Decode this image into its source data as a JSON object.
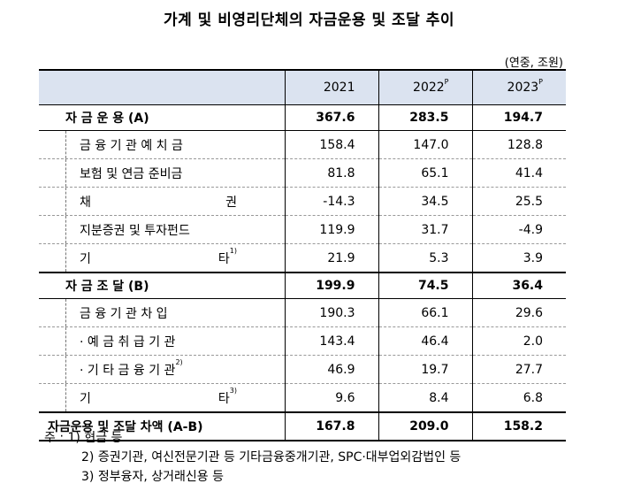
{
  "title": "가계 및 비영리단체의 자금운용 및 조달 추이",
  "unit": "(연중, 조원)",
  "columns": [
    {
      "year": "2021",
      "sup": ""
    },
    {
      "year": "2022",
      "sup": "P"
    },
    {
      "year": "2023",
      "sup": "P"
    }
  ],
  "rows": {
    "uses": {
      "label": "자 금 운 용 (A)",
      "values": [
        "367.6",
        "283.5",
        "194.7"
      ]
    },
    "deposits": {
      "label": "금 융 기 관 예 치 금",
      "values": [
        "158.4",
        "147.0",
        "128.8"
      ]
    },
    "insurance": {
      "label": "보험 및 연금 준비금",
      "values": [
        "81.8",
        "65.1",
        "41.4"
      ]
    },
    "bonds": {
      "label_a": "채",
      "label_b": "권",
      "values": [
        "-14.3",
        "34.5",
        "25.5"
      ]
    },
    "equity": {
      "label": "지분증권 및 투자펀드",
      "values": [
        "119.9",
        "31.7",
        "-4.9"
      ]
    },
    "other_uses": {
      "label_a": "기",
      "label_b": "타",
      "sup": "1)",
      "values": [
        "21.9",
        "5.3",
        "3.9"
      ]
    },
    "sources": {
      "label": "자 금 조 달 (B)",
      "values": [
        "199.9",
        "74.5",
        "36.4"
      ]
    },
    "borrowing": {
      "label": "금 융 기 관 차 입",
      "values": [
        "190.3",
        "66.1",
        "29.6"
      ]
    },
    "depository": {
      "label": "· 예 금 취 급 기 관",
      "values": [
        "143.4",
        "46.4",
        "2.0"
      ]
    },
    "other_fi": {
      "label": "· 기 타 금 융 기 관",
      "sup": "2)",
      "values": [
        "46.9",
        "19.7",
        "27.7"
      ]
    },
    "other_sources": {
      "label_a": "기",
      "label_b": "타",
      "sup": "3)",
      "values": [
        "9.6",
        "8.4",
        "6.8"
      ]
    },
    "net": {
      "label": "자금운용 및 조달 차액 (A-B)",
      "values": [
        "167.8",
        "209.0",
        "158.2"
      ]
    }
  },
  "notes": {
    "prefix": "주 :",
    "n1": "1) 현금 등",
    "n2": "2) 증권기관, 여신전문기관 등 기타금융중개기관, SPC·대부업외감법인 등",
    "n3": "3) 정부융자, 상거래신용 등"
  }
}
